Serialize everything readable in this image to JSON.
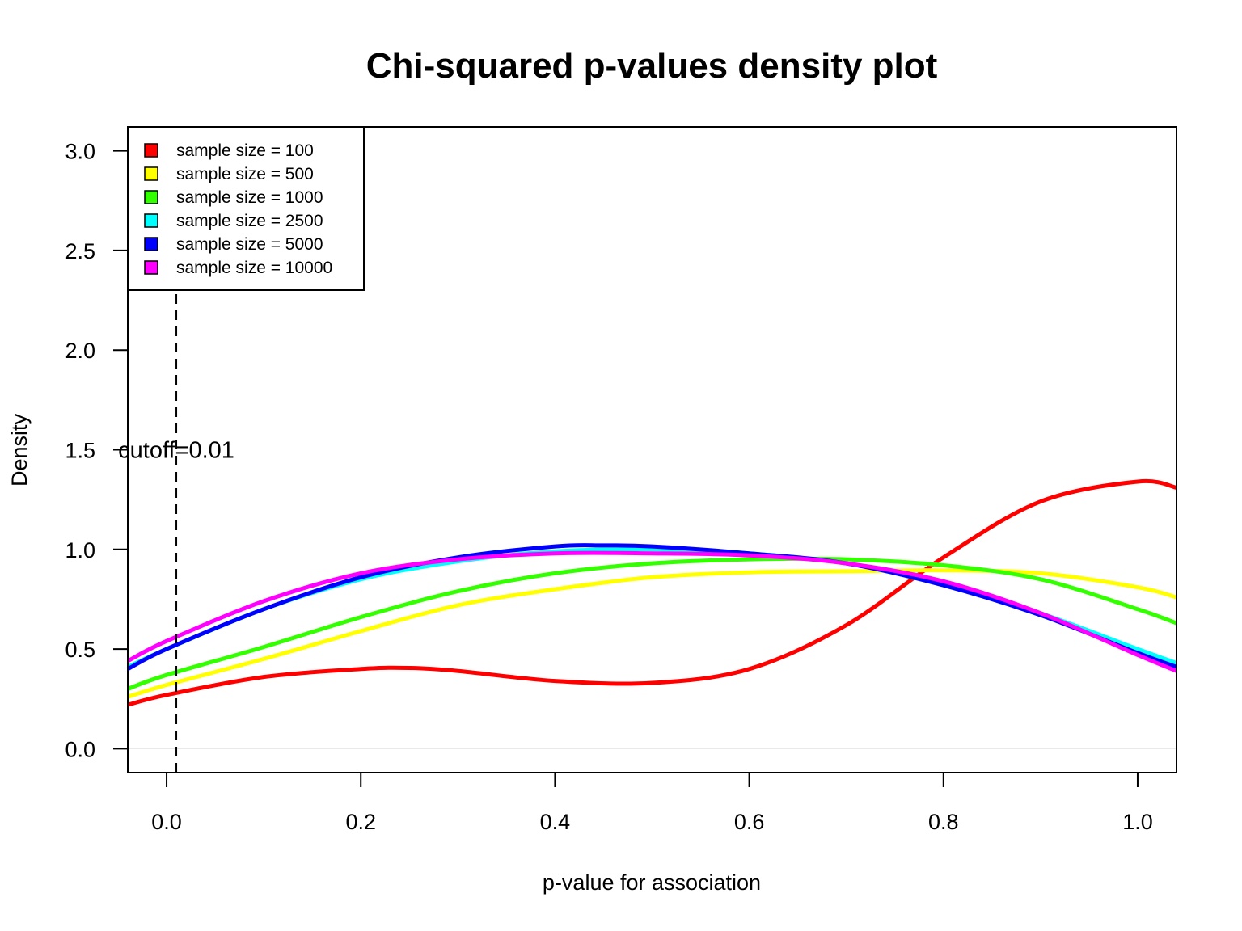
{
  "chart_data": {
    "type": "line",
    "title": "Chi-squared p-values density plot",
    "xlabel": "p-value for association",
    "ylabel": "Density",
    "xlim": [
      -0.04,
      1.04
    ],
    "ylim": [
      -0.12,
      3.12
    ],
    "xticks": [
      "0.0",
      "0.2",
      "0.4",
      "0.6",
      "0.8",
      "1.0"
    ],
    "yticks": [
      "0.0",
      "0.5",
      "1.0",
      "1.5",
      "2.0",
      "2.5",
      "3.0"
    ],
    "legend_position": "top-left",
    "cutoff": {
      "x": 0.01,
      "label": "cutoff=0.01"
    },
    "series": [
      {
        "name": "sample size = 100",
        "color": "#ff0000",
        "x": [
          -0.04,
          0.0,
          0.1,
          0.2,
          0.25,
          0.3,
          0.4,
          0.5,
          0.6,
          0.7,
          0.8,
          0.9,
          1.0,
          1.04
        ],
        "y": [
          0.22,
          0.27,
          0.36,
          0.4,
          0.405,
          0.39,
          0.34,
          0.33,
          0.4,
          0.62,
          0.96,
          1.24,
          1.34,
          1.31
        ]
      },
      {
        "name": "sample size = 500",
        "color": "#ffff00",
        "x": [
          -0.04,
          0.0,
          0.1,
          0.2,
          0.3,
          0.4,
          0.5,
          0.6,
          0.7,
          0.8,
          0.9,
          1.0,
          1.04
        ],
        "y": [
          0.26,
          0.32,
          0.45,
          0.59,
          0.72,
          0.8,
          0.86,
          0.885,
          0.89,
          0.895,
          0.88,
          0.81,
          0.76
        ]
      },
      {
        "name": "sample size = 1000",
        "color": "#33ff00",
        "x": [
          -0.04,
          0.0,
          0.1,
          0.2,
          0.3,
          0.4,
          0.5,
          0.6,
          0.7,
          0.8,
          0.9,
          1.0,
          1.04
        ],
        "y": [
          0.3,
          0.37,
          0.51,
          0.66,
          0.79,
          0.88,
          0.93,
          0.95,
          0.95,
          0.92,
          0.85,
          0.7,
          0.63
        ]
      },
      {
        "name": "sample size = 2500",
        "color": "#00ffff",
        "x": [
          -0.04,
          0.0,
          0.1,
          0.2,
          0.3,
          0.4,
          0.5,
          0.6,
          0.7,
          0.8,
          0.9,
          1.0,
          1.04
        ],
        "y": [
          0.41,
          0.5,
          0.7,
          0.85,
          0.94,
          0.99,
          1.0,
          0.98,
          0.93,
          0.83,
          0.68,
          0.5,
          0.43
        ]
      },
      {
        "name": "sample size = 5000",
        "color": "#0000ff",
        "x": [
          -0.04,
          0.0,
          0.1,
          0.2,
          0.3,
          0.4,
          0.45,
          0.5,
          0.6,
          0.7,
          0.8,
          0.9,
          1.0,
          1.04
        ],
        "y": [
          0.4,
          0.5,
          0.7,
          0.86,
          0.96,
          1.015,
          1.02,
          1.015,
          0.98,
          0.93,
          0.82,
          0.67,
          0.48,
          0.41
        ]
      },
      {
        "name": "sample size = 10000",
        "color": "#ff00ff",
        "x": [
          -0.04,
          0.0,
          0.1,
          0.2,
          0.3,
          0.4,
          0.5,
          0.6,
          0.7,
          0.8,
          0.9,
          1.0,
          1.04
        ],
        "y": [
          0.44,
          0.54,
          0.74,
          0.88,
          0.95,
          0.98,
          0.98,
          0.97,
          0.93,
          0.84,
          0.68,
          0.47,
          0.39
        ]
      }
    ]
  }
}
